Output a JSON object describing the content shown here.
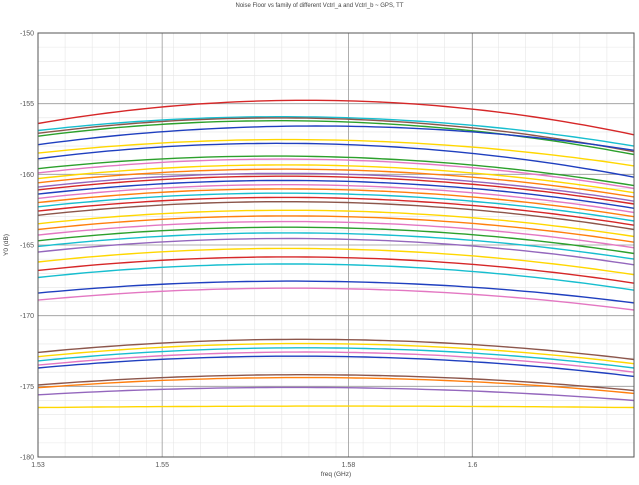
{
  "chart_data": {
    "type": "line",
    "title": "Noise Floor vs family of different Vctrl_a and Vctrl_b ~ GPS, TT",
    "xlabel": "freq (GHz)",
    "ylabel": "Y0 (dB)",
    "xlim": [
      1.53,
      1.626
    ],
    "ylim": [
      -180,
      -150
    ],
    "xticks": [
      1.53,
      1.55,
      1.58,
      1.6
    ],
    "xtick_labels": [
      "1.53",
      "1.55",
      "1.58",
      "1.6"
    ],
    "yticks": [
      -150,
      -155,
      -160,
      -165,
      -170,
      -175,
      -180
    ],
    "ytick_labels": [
      "-150",
      "-155",
      "-160",
      "-165",
      "-170",
      "-175",
      "-180"
    ],
    "grid": true,
    "legend": "none",
    "curve_shape": "arched, peak near 1.58 GHz",
    "series": [
      {
        "color": "#d62728",
        "values_at": {
          "x": [
            1.53,
            1.58,
            1.626
          ],
          "y": [
            -156.4,
            -154.8,
            -157.2
          ]
        }
      },
      {
        "color": "#17becf",
        "values_at": {
          "x": [
            1.53,
            1.58,
            1.626
          ],
          "y": [
            -156.9,
            -156.0,
            -158.0
          ]
        }
      },
      {
        "color": "#8c564b",
        "values_at": {
          "x": [
            1.53,
            1.58,
            1.626
          ],
          "y": [
            -157.1,
            -156.1,
            -158.4
          ]
        }
      },
      {
        "color": "#2ca02c",
        "values_at": {
          "x": [
            1.53,
            1.58,
            1.626
          ],
          "y": [
            -157.3,
            -156.3,
            -158.6
          ]
        }
      },
      {
        "color": "#1f3fbf",
        "values_at": {
          "x": [
            1.53,
            1.58,
            1.626
          ],
          "y": [
            -157.9,
            -156.6,
            -158.3
          ]
        }
      },
      {
        "color": "#ffd700",
        "values_at": {
          "x": [
            1.53,
            1.58,
            1.626
          ],
          "y": [
            -158.5,
            -157.6,
            -159.4
          ]
        }
      },
      {
        "color": "#1f3fbf",
        "values_at": {
          "x": [
            1.53,
            1.58,
            1.626
          ],
          "y": [
            -158.9,
            -157.9,
            -160.2
          ]
        }
      },
      {
        "color": "#2ca02c",
        "values_at": {
          "x": [
            1.53,
            1.58,
            1.626
          ],
          "y": [
            -159.6,
            -158.8,
            -160.8
          ]
        }
      },
      {
        "color": "#e377c2",
        "values_at": {
          "x": [
            1.53,
            1.58,
            1.626
          ],
          "y": [
            -159.9,
            -159.0,
            -161.0
          ]
        }
      },
      {
        "color": "#ffd700",
        "values_at": {
          "x": [
            1.53,
            1.58,
            1.626
          ],
          "y": [
            -160.3,
            -159.4,
            -161.3
          ]
        }
      },
      {
        "color": "#ff7f0e",
        "values_at": {
          "x": [
            1.53,
            1.58,
            1.626
          ],
          "y": [
            -160.6,
            -159.7,
            -161.6
          ]
        }
      },
      {
        "color": "#9467bd",
        "values_at": {
          "x": [
            1.53,
            1.58,
            1.626
          ],
          "y": [
            -160.9,
            -160.0,
            -161.9
          ]
        }
      },
      {
        "color": "#d62728",
        "values_at": {
          "x": [
            1.53,
            1.58,
            1.626
          ],
          "y": [
            -161.1,
            -160.2,
            -162.1
          ]
        }
      },
      {
        "color": "#1f3fbf",
        "values_at": {
          "x": [
            1.53,
            1.58,
            1.626
          ],
          "y": [
            -161.4,
            -160.5,
            -162.4
          ]
        }
      },
      {
        "color": "#e377c2",
        "values_at": {
          "x": [
            1.53,
            1.58,
            1.626
          ],
          "y": [
            -161.7,
            -160.8,
            -162.7
          ]
        }
      },
      {
        "color": "#ff7f0e",
        "values_at": {
          "x": [
            1.53,
            1.58,
            1.626
          ],
          "y": [
            -162.0,
            -161.1,
            -163.0
          ]
        }
      },
      {
        "color": "#17becf",
        "values_at": {
          "x": [
            1.53,
            1.58,
            1.626
          ],
          "y": [
            -162.3,
            -161.4,
            -163.3
          ]
        }
      },
      {
        "color": "#d62728",
        "values_at": {
          "x": [
            1.53,
            1.58,
            1.626
          ],
          "y": [
            -162.6,
            -161.7,
            -163.6
          ]
        }
      },
      {
        "color": "#8c564b",
        "values_at": {
          "x": [
            1.53,
            1.58,
            1.626
          ],
          "y": [
            -162.9,
            -162.0,
            -163.9
          ]
        }
      },
      {
        "color": "#ffd700",
        "values_at": {
          "x": [
            1.53,
            1.58,
            1.626
          ],
          "y": [
            -163.5,
            -162.6,
            -164.4
          ]
        }
      },
      {
        "color": "#ff7f0e",
        "values_at": {
          "x": [
            1.53,
            1.58,
            1.626
          ],
          "y": [
            -163.9,
            -163.0,
            -164.8
          ]
        }
      },
      {
        "color": "#e377c2",
        "values_at": {
          "x": [
            1.53,
            1.58,
            1.626
          ],
          "y": [
            -164.3,
            -163.4,
            -165.2
          ]
        }
      },
      {
        "color": "#2ca02c",
        "values_at": {
          "x": [
            1.53,
            1.58,
            1.626
          ],
          "y": [
            -164.7,
            -163.8,
            -165.6
          ]
        }
      },
      {
        "color": "#17becf",
        "values_at": {
          "x": [
            1.53,
            1.58,
            1.626
          ],
          "y": [
            -165.1,
            -164.2,
            -166.0
          ]
        }
      },
      {
        "color": "#9467bd",
        "values_at": {
          "x": [
            1.53,
            1.58,
            1.626
          ],
          "y": [
            -165.5,
            -164.6,
            -166.4
          ]
        }
      },
      {
        "color": "#ffd700",
        "values_at": {
          "x": [
            1.53,
            1.58,
            1.626
          ],
          "y": [
            -166.2,
            -165.3,
            -167.1
          ]
        }
      },
      {
        "color": "#d62728",
        "values_at": {
          "x": [
            1.53,
            1.58,
            1.626
          ],
          "y": [
            -166.8,
            -165.9,
            -167.7
          ]
        }
      },
      {
        "color": "#17becf",
        "values_at": {
          "x": [
            1.53,
            1.58,
            1.626
          ],
          "y": [
            -167.3,
            -166.4,
            -168.2
          ]
        }
      },
      {
        "color": "#1f3fbf",
        "values_at": {
          "x": [
            1.53,
            1.58,
            1.626
          ],
          "y": [
            -168.4,
            -167.6,
            -169.1
          ]
        }
      },
      {
        "color": "#e377c2",
        "values_at": {
          "x": [
            1.53,
            1.58,
            1.626
          ],
          "y": [
            -168.9,
            -168.1,
            -169.6
          ]
        }
      },
      {
        "color": "#8c564b",
        "values_at": {
          "x": [
            1.53,
            1.58,
            1.626
          ],
          "y": [
            -172.6,
            -171.7,
            -173.1
          ]
        }
      },
      {
        "color": "#ffd700",
        "values_at": {
          "x": [
            1.53,
            1.58,
            1.626
          ],
          "y": [
            -172.9,
            -172.0,
            -173.4
          ]
        }
      },
      {
        "color": "#17becf",
        "values_at": {
          "x": [
            1.53,
            1.58,
            1.626
          ],
          "y": [
            -173.2,
            -172.3,
            -173.7
          ]
        }
      },
      {
        "color": "#e377c2",
        "values_at": {
          "x": [
            1.53,
            1.58,
            1.626
          ],
          "y": [
            -173.5,
            -172.6,
            -174.0
          ]
        }
      },
      {
        "color": "#1f3fbf",
        "values_at": {
          "x": [
            1.53,
            1.58,
            1.626
          ],
          "y": [
            -173.7,
            -172.9,
            -174.3
          ]
        }
      },
      {
        "color": "#8c564b",
        "values_at": {
          "x": [
            1.53,
            1.58,
            1.626
          ],
          "y": [
            -174.9,
            -174.2,
            -175.3
          ]
        }
      },
      {
        "color": "#ff7f0e",
        "values_at": {
          "x": [
            1.53,
            1.58,
            1.626
          ],
          "y": [
            -175.1,
            -174.4,
            -175.5
          ]
        }
      },
      {
        "color": "#9467bd",
        "values_at": {
          "x": [
            1.53,
            1.58,
            1.626
          ],
          "y": [
            -175.6,
            -175.1,
            -176.0
          ]
        }
      },
      {
        "color": "#ffd700",
        "values_at": {
          "x": [
            1.53,
            1.58,
            1.626
          ],
          "y": [
            -176.5,
            -176.4,
            -176.5
          ]
        }
      }
    ]
  }
}
